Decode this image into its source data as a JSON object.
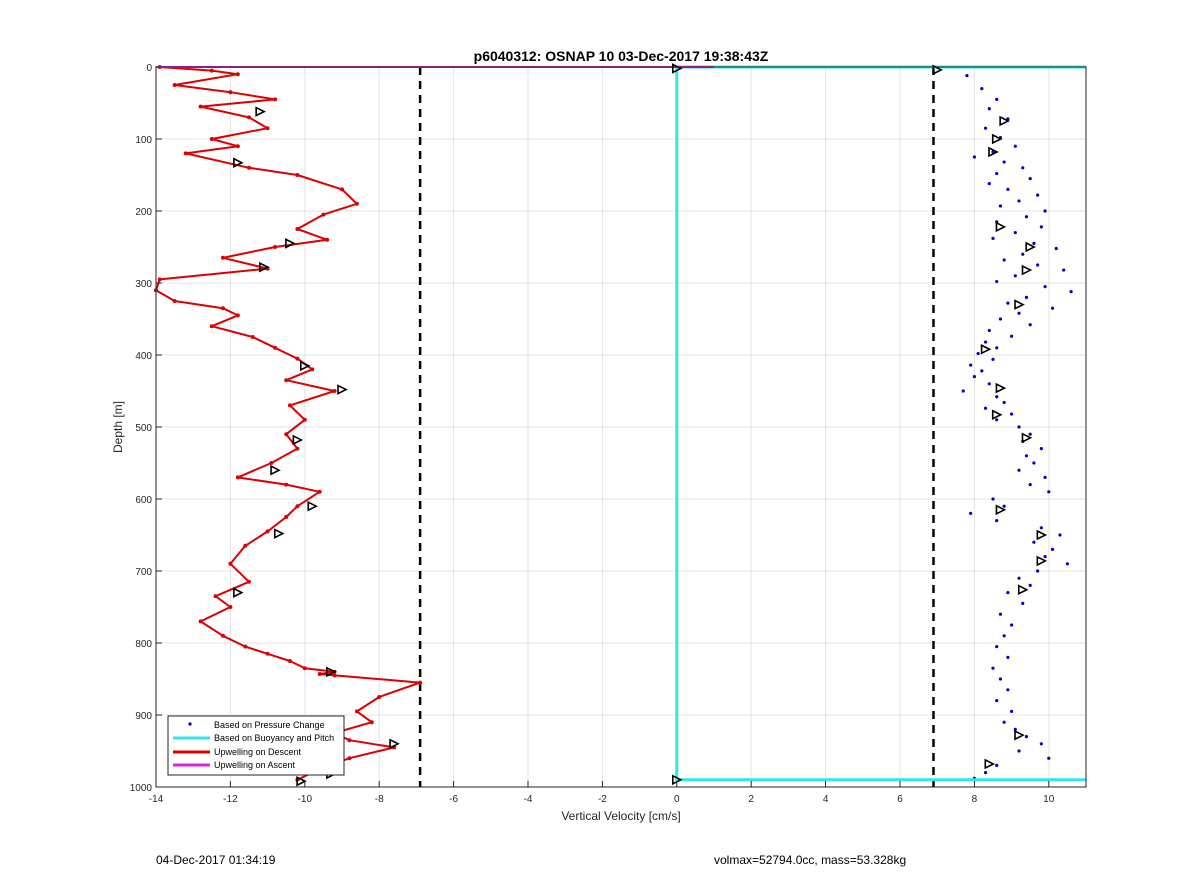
{
  "chart_data": {
    "type": "scatter",
    "title": "p6040312: OSNAP 10 03-Dec-2017 19:38:43Z",
    "xlabel": "Vertical Velocity [cm/s]",
    "ylabel": "Depth [m]",
    "xlim": [
      -14,
      11
    ],
    "ylim": [
      0,
      1000
    ],
    "y_reversed": true,
    "grid": true,
    "xticks": [
      -14,
      -12,
      -10,
      -8,
      -6,
      -4,
      -2,
      0,
      2,
      4,
      6,
      8,
      10
    ],
    "yticks": [
      0,
      100,
      200,
      300,
      400,
      500,
      600,
      700,
      800,
      900,
      1000
    ],
    "legend_position": "bottom-left",
    "reference_lines_x": [
      -6.9,
      6.9
    ],
    "series": [
      {
        "name": "Based on Pressure Change",
        "style": "points",
        "color": "#0000cc",
        "x": [
          7.8,
          8.2,
          8.6,
          8.4,
          8.9,
          8.3,
          8.7,
          9.1,
          8.5,
          8.0,
          8.8,
          9.3,
          8.6,
          9.5,
          8.4,
          8.9,
          9.7,
          9.2,
          8.7,
          9.9,
          9.4,
          8.6,
          9.8,
          9.1,
          8.5,
          9.6,
          10.2,
          9.3,
          8.8,
          9.7,
          10.4,
          9.1,
          8.6,
          9.9,
          10.6,
          9.4,
          8.9,
          10.1,
          9.2,
          8.7,
          9.5,
          8.4,
          9.0,
          8.3,
          8.6,
          8.1,
          8.5,
          7.9,
          8.2,
          8.0,
          8.4,
          7.7,
          8.6,
          8.8,
          8.3,
          9.0,
          8.6,
          9.2,
          9.5,
          9.3,
          9.8,
          9.4,
          9.6,
          9.2,
          9.9,
          9.5,
          10.0,
          8.5,
          8.8,
          7.9,
          8.6,
          9.8,
          10.3,
          9.6,
          10.1,
          9.9,
          10.5,
          9.7,
          9.2,
          9.5,
          8.9,
          9.3,
          8.7,
          9.0,
          8.8,
          8.6,
          8.9,
          8.5,
          8.7,
          8.9,
          8.6,
          9.0,
          8.8,
          9.1,
          9.4,
          9.8,
          9.2,
          10.0,
          8.6,
          8.3,
          8.0
        ],
        "y": [
          12,
          30,
          45,
          58,
          72,
          85,
          98,
          110,
          118,
          125,
          132,
          140,
          148,
          155,
          162,
          170,
          178,
          186,
          193,
          200,
          208,
          215,
          222,
          230,
          238,
          245,
          252,
          260,
          268,
          275,
          282,
          290,
          298,
          305,
          312,
          320,
          328,
          335,
          342,
          350,
          358,
          366,
          374,
          382,
          390,
          398,
          406,
          414,
          422,
          430,
          440,
          450,
          458,
          466,
          474,
          482,
          490,
          500,
          510,
          520,
          530,
          540,
          550,
          560,
          570,
          580,
          590,
          600,
          610,
          620,
          630,
          640,
          650,
          660,
          670,
          680,
          690,
          700,
          710,
          720,
          730,
          745,
          760,
          775,
          790,
          805,
          820,
          835,
          850,
          865,
          880,
          895,
          910,
          920,
          930,
          940,
          950,
          960,
          970,
          980,
          988
        ]
      },
      {
        "name": "Based on Buoyancy and Pitch",
        "style": "line",
        "color": "#33e5e5",
        "x": [
          11,
          0,
          0,
          0,
          11
        ],
        "y": [
          0,
          0,
          500,
          990,
          990
        ]
      },
      {
        "name": "Upwelling on Descent",
        "style": "line",
        "color": "#dd0000",
        "x": [
          -13.9,
          -12.5,
          -11.8,
          -13.5,
          -12.0,
          -10.8,
          -12.8,
          -11.5,
          -11.0,
          -12.5,
          -11.8,
          -13.2,
          -11.5,
          -10.2,
          -9.0,
          -8.6,
          -9.5,
          -10.2,
          -9.4,
          -10.8,
          -12.2,
          -11.0,
          -13.9,
          -14.0,
          -13.5,
          -12.2,
          -11.8,
          -12.5,
          -11.4,
          -10.8,
          -10.2,
          -9.8,
          -10.5,
          -9.2,
          -10.4,
          -10.0,
          -10.5,
          -10.2,
          -10.9,
          -11.8,
          -10.5,
          -9.6,
          -10.2,
          -10.5,
          -11.0,
          -11.6,
          -12.0,
          -11.5,
          -12.4,
          -12.0,
          -12.8,
          -12.2,
          -11.6,
          -11.0,
          -10.4,
          -10.0,
          -9.2,
          -9.6,
          -9.2,
          -6.9,
          -8.0,
          -8.6,
          -8.2,
          -9.2,
          -8.8,
          -7.6,
          -8.8,
          -9.6,
          -10.2
        ],
        "y": [
          0,
          5,
          10,
          25,
          35,
          45,
          55,
          70,
          85,
          100,
          110,
          120,
          140,
          150,
          170,
          190,
          205,
          225,
          240,
          250,
          265,
          280,
          295,
          310,
          325,
          335,
          345,
          360,
          375,
          390,
          405,
          420,
          435,
          450,
          470,
          490,
          510,
          530,
          550,
          570,
          580,
          590,
          610,
          625,
          645,
          665,
          690,
          715,
          735,
          750,
          770,
          790,
          805,
          815,
          825,
          835,
          840,
          843,
          845,
          855,
          875,
          895,
          910,
          925,
          935,
          945,
          960,
          975,
          990
        ]
      },
      {
        "name": "Upwelling on Ascent",
        "style": "line",
        "color": "#e020e0",
        "x": [
          -14,
          1.0
        ],
        "y": [
          0,
          0
        ]
      }
    ],
    "markers": {
      "symbol": "triangle",
      "color": "#000000",
      "points": [
        {
          "x": -11.2,
          "y": 62
        },
        {
          "x": -11.8,
          "y": 133
        },
        {
          "x": -10.4,
          "y": 245
        },
        {
          "x": -11.1,
          "y": 278
        },
        {
          "x": -10.0,
          "y": 415
        },
        {
          "x": -9.0,
          "y": 448
        },
        {
          "x": -10.2,
          "y": 518
        },
        {
          "x": -10.8,
          "y": 560
        },
        {
          "x": -9.8,
          "y": 610
        },
        {
          "x": -10.7,
          "y": 648
        },
        {
          "x": -11.8,
          "y": 730
        },
        {
          "x": -9.3,
          "y": 840
        },
        {
          "x": -7.6,
          "y": 940
        },
        {
          "x": -9.3,
          "y": 982
        },
        {
          "x": -10.1,
          "y": 992
        },
        {
          "x": 0.0,
          "y": 2
        },
        {
          "x": 7.0,
          "y": 4
        },
        {
          "x": 8.8,
          "y": 75
        },
        {
          "x": 8.6,
          "y": 100
        },
        {
          "x": 8.5,
          "y": 118
        },
        {
          "x": 8.7,
          "y": 222
        },
        {
          "x": 9.5,
          "y": 250
        },
        {
          "x": 9.4,
          "y": 282
        },
        {
          "x": 9.2,
          "y": 330
        },
        {
          "x": 8.3,
          "y": 392
        },
        {
          "x": 8.7,
          "y": 446
        },
        {
          "x": 8.6,
          "y": 483
        },
        {
          "x": 9.4,
          "y": 515
        },
        {
          "x": 8.7,
          "y": 615
        },
        {
          "x": 9.8,
          "y": 650
        },
        {
          "x": 9.8,
          "y": 686
        },
        {
          "x": 9.3,
          "y": 726
        },
        {
          "x": 9.2,
          "y": 928
        },
        {
          "x": 8.4,
          "y": 968
        },
        {
          "x": 0.0,
          "y": 990
        }
      ]
    }
  },
  "footer": {
    "left": "04-Dec-2017 01:34:19",
    "right": "volmax=52794.0cc, mass=53.328kg"
  }
}
